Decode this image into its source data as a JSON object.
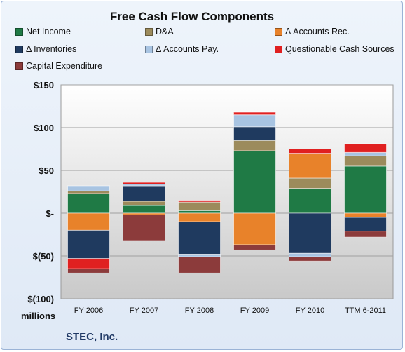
{
  "chart_data": {
    "type": "bar",
    "stacked": true,
    "title": "Free Cash Flow Components",
    "units_label": "millions",
    "footer": "STEC, Inc.",
    "categories": [
      "FY 2006",
      "FY 2007",
      "FY 2008",
      "FY 2009",
      "FY 2010",
      "TTM 6-2011"
    ],
    "ylim": [
      -100,
      150
    ],
    "yticks": [
      150,
      100,
      50,
      0,
      -50,
      -100
    ],
    "ytick_labels": [
      "$150",
      "$100",
      "$50",
      "$-",
      "$(50)",
      "$(100)"
    ],
    "grid": true,
    "legend_position": "top",
    "series": [
      {
        "name": "Net Income",
        "color": "#1f7a45",
        "values": [
          23,
          9,
          3,
          73,
          29,
          55
        ]
      },
      {
        "name": "D&A",
        "color": "#9c8b5c",
        "values": [
          3,
          5,
          10,
          12,
          12,
          12
        ]
      },
      {
        "name": "Δ Accounts Rec.",
        "color": "#e8822a",
        "values": [
          -20,
          -2,
          -10,
          -37,
          29,
          -5
        ]
      },
      {
        "name": "Δ Inventories",
        "color": "#1f3a5f",
        "values": [
          -33,
          18,
          -38,
          16,
          -47,
          -16
        ]
      },
      {
        "name": "Δ Accounts Pay.",
        "color": "#a8c4e2",
        "values": [
          6,
          2,
          -3,
          14,
          -4,
          4
        ]
      },
      {
        "name": "Questionable Cash Sources",
        "color": "#e02020",
        "values": [
          -12,
          2,
          2,
          3,
          5,
          10
        ]
      },
      {
        "name": "Capital Expenditure",
        "color": "#8c3b3b",
        "values": [
          -5,
          -30,
          -19,
          -6,
          -5,
          -7
        ]
      }
    ]
  }
}
